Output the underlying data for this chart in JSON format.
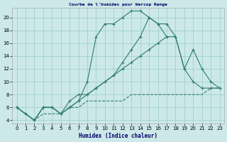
{
  "title": "Courbe de l'humidex pour Warcop Range",
  "xlabel": "Humidex (Indice chaleur)",
  "bg_color": "#cce8e8",
  "grid_color": "#99cccc",
  "line_color": "#2e7d6e",
  "xlim": [
    -0.5,
    23.5
  ],
  "ylim": [
    3.5,
    21.5
  ],
  "yticks": [
    4,
    6,
    8,
    10,
    12,
    14,
    16,
    18,
    20
  ],
  "xticks": [
    0,
    1,
    2,
    3,
    4,
    5,
    6,
    7,
    8,
    9,
    10,
    11,
    12,
    13,
    14,
    15,
    16,
    17,
    18,
    19,
    20,
    21,
    22,
    23
  ],
  "line1_x": [
    0,
    1,
    2,
    3,
    4,
    5,
    6,
    7,
    8,
    9,
    10,
    11,
    12,
    13,
    14,
    15,
    16,
    17,
    18,
    19,
    20,
    21,
    22,
    23
  ],
  "line1_y": [
    6,
    5,
    4,
    6,
    6,
    5,
    6,
    7,
    10,
    17,
    19,
    19,
    20,
    21,
    21,
    20,
    19,
    19,
    17,
    12,
    15,
    12,
    10,
    9
  ],
  "line2_x": [
    0,
    1,
    2,
    3,
    4,
    5,
    6,
    7,
    8,
    9,
    10,
    11,
    12,
    13,
    14,
    15,
    16,
    17
  ],
  "line2_y": [
    6,
    5,
    4,
    6,
    6,
    5,
    7,
    8,
    8,
    9,
    10,
    11,
    13,
    15,
    17,
    20,
    19,
    17
  ],
  "line3_x": [
    0,
    2,
    3,
    4,
    5,
    6,
    7,
    8,
    9,
    10,
    11,
    12,
    13,
    14,
    15,
    16,
    17,
    18,
    19,
    20,
    21,
    22,
    23
  ],
  "line3_y": [
    6,
    4,
    6,
    6,
    5,
    6,
    7,
    8,
    9,
    10,
    11,
    12,
    13,
    14,
    15,
    16,
    17,
    17,
    12,
    10,
    9,
    9,
    9
  ],
  "line4_x": [
    0,
    1,
    2,
    3,
    4,
    5,
    6,
    7,
    8,
    9,
    10,
    11,
    12,
    13,
    14,
    15,
    16,
    17,
    18,
    19,
    20,
    21,
    22,
    23
  ],
  "line4_y": [
    6,
    5,
    4,
    5,
    5,
    5,
    6,
    6,
    7,
    7,
    7,
    7,
    7,
    8,
    8,
    8,
    8,
    8,
    8,
    8,
    8,
    8,
    9,
    9
  ]
}
